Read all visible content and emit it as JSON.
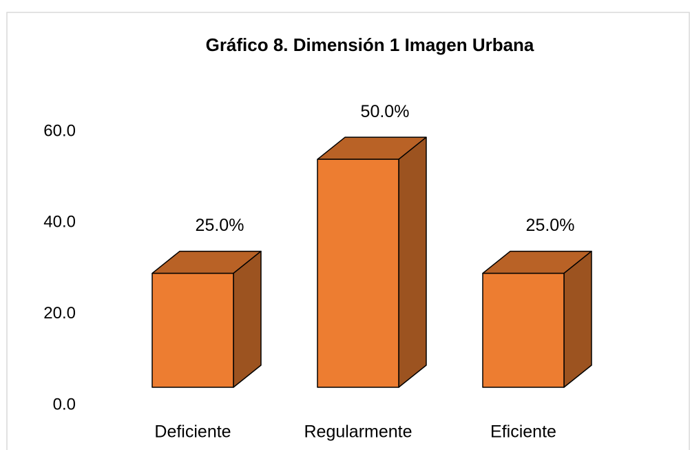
{
  "chart_data": {
    "type": "bar3d",
    "title": "Gráfico 8. Dimensión 1 Imagen Urbana",
    "categories": [
      "Deficiente",
      "Regularmente",
      "Eficiente"
    ],
    "values": [
      25,
      50,
      25
    ],
    "value_labels": [
      "25.0%",
      "50.0%",
      "25.0%"
    ],
    "color": "#ED7D31",
    "ylim": [
      0,
      60
    ],
    "yticks": [
      {
        "value": 0,
        "label": "0.0"
      },
      {
        "value": 20,
        "label": "20.0"
      },
      {
        "value": 40,
        "label": "40.0"
      },
      {
        "value": 60,
        "label": "60.0"
      }
    ],
    "grid": false
  }
}
